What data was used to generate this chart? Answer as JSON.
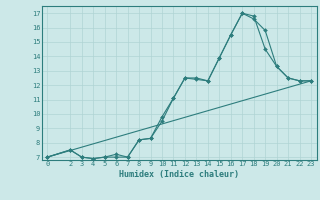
{
  "title": "",
  "xlabel": "Humidex (Indice chaleur)",
  "ylabel": "",
  "bg_color": "#cce8e8",
  "line_color": "#2d7d7d",
  "xlim": [
    -0.5,
    23.5
  ],
  "ylim": [
    6.8,
    17.5
  ],
  "xticks": [
    0,
    2,
    3,
    4,
    5,
    6,
    7,
    8,
    9,
    10,
    11,
    12,
    13,
    14,
    15,
    16,
    17,
    18,
    19,
    20,
    21,
    22,
    23
  ],
  "yticks": [
    7,
    8,
    9,
    10,
    11,
    12,
    13,
    14,
    15,
    16,
    17
  ],
  "line1_x": [
    0,
    2,
    3,
    4,
    5,
    6,
    7,
    8,
    9,
    10,
    11,
    12,
    13,
    14,
    15,
    16,
    17,
    18,
    19,
    20,
    21,
    22,
    23
  ],
  "line1_y": [
    7,
    7.5,
    7.0,
    6.9,
    7.0,
    7.0,
    7.0,
    8.2,
    8.3,
    9.8,
    11.1,
    12.5,
    12.5,
    12.3,
    13.9,
    15.5,
    17.0,
    16.8,
    14.5,
    13.3,
    12.5,
    12.3,
    12.3
  ],
  "line2_x": [
    0,
    2,
    3,
    4,
    5,
    6,
    7,
    8,
    9,
    10,
    11,
    12,
    13,
    14,
    15,
    16,
    17,
    18,
    19,
    20,
    21,
    22,
    23
  ],
  "line2_y": [
    7,
    7.5,
    7.0,
    6.9,
    7.0,
    7.2,
    7.0,
    8.2,
    8.3,
    9.5,
    11.1,
    12.5,
    12.4,
    12.3,
    13.9,
    15.5,
    17.0,
    16.6,
    15.8,
    13.3,
    12.5,
    12.3,
    12.3
  ],
  "line3_x": [
    0,
    23
  ],
  "line3_y": [
    7.0,
    12.3
  ],
  "tick_fontsize": 5.0,
  "xlabel_fontsize": 6.0,
  "tick_color": "#2d7d7d",
  "grid_color": "#b0d4d4",
  "spine_color": "#2d7d7d"
}
